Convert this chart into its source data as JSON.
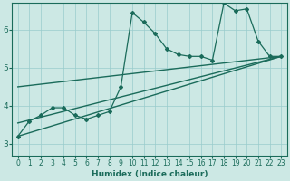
{
  "xlabel": "Humidex (Indice chaleur)",
  "ylabel": "",
  "bg_color": "#cce8e4",
  "grid_color": "#99cccc",
  "line_color": "#1a6b5a",
  "xlim": [
    -0.5,
    23.5
  ],
  "ylim": [
    2.7,
    6.7
  ],
  "xticks": [
    0,
    1,
    2,
    3,
    4,
    5,
    6,
    7,
    8,
    9,
    10,
    11,
    12,
    13,
    14,
    15,
    16,
    17,
    18,
    19,
    20,
    21,
    22,
    23
  ],
  "yticks": [
    3,
    4,
    5,
    6
  ],
  "main_x": [
    0,
    1,
    2,
    3,
    4,
    5,
    6,
    7,
    8,
    9,
    10,
    11,
    12,
    13,
    14,
    15,
    16,
    17,
    18,
    19,
    20,
    21,
    22,
    23
  ],
  "main_y": [
    3.2,
    3.6,
    3.75,
    3.95,
    3.95,
    3.75,
    3.65,
    3.75,
    3.85,
    4.5,
    6.45,
    6.2,
    5.9,
    5.5,
    5.35,
    5.3,
    5.3,
    5.2,
    6.7,
    6.5,
    6.55,
    5.7,
    5.3,
    5.3
  ],
  "trend1_x": [
    0,
    23
  ],
  "trend1_y": [
    3.2,
    5.3
  ],
  "trend2_x": [
    0,
    23
  ],
  "trend2_y": [
    3.55,
    5.3
  ],
  "trend3_x": [
    0,
    23
  ],
  "trend3_y": [
    4.5,
    5.3
  ]
}
